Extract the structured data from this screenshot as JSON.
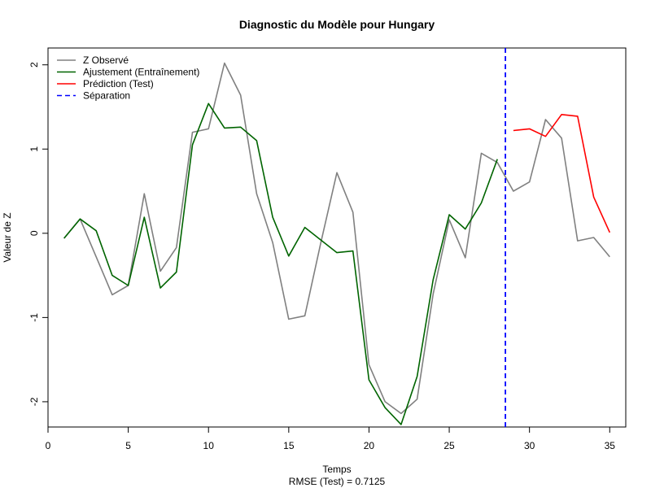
{
  "chart_data": {
    "type": "line",
    "title": "Diagnostic du Modèle pour Hungary",
    "xlabel": "Temps",
    "subtitle": "RMSE (Test) = 0.7125",
    "ylabel": "Valeur de Z",
    "xlim": [
      0,
      36
    ],
    "ylim": [
      -2.3,
      2.2
    ],
    "xticks": [
      0,
      5,
      10,
      15,
      20,
      25,
      30,
      35
    ],
    "yticks": [
      -2,
      -1,
      0,
      1,
      2
    ],
    "grid": false,
    "legend_position": "top-left",
    "split_x": 28.5,
    "series": [
      {
        "name": "Z Observé",
        "color": "#808080",
        "style": "solid",
        "x": [
          1,
          2,
          3,
          4,
          5,
          6,
          7,
          8,
          9,
          10,
          11,
          12,
          13,
          14,
          15,
          16,
          17,
          18,
          19,
          20,
          21,
          22,
          23,
          24,
          25,
          26,
          27,
          28,
          29,
          30,
          31,
          32,
          33,
          34,
          35
        ],
        "values": [
          -0.06,
          0.17,
          -0.28,
          -0.73,
          -0.62,
          0.47,
          -0.45,
          -0.17,
          1.2,
          1.24,
          2.02,
          1.64,
          0.47,
          -0.11,
          -1.02,
          -0.98,
          -0.11,
          0.72,
          0.25,
          -1.56,
          -2.0,
          -2.14,
          -1.97,
          -0.72,
          0.16,
          -0.29,
          0.95,
          0.84,
          0.5,
          0.61,
          1.35,
          1.13,
          -0.09,
          -0.05,
          -0.28
        ]
      },
      {
        "name": "Ajustement (Entraînement)",
        "color": "#006400",
        "style": "solid",
        "x": [
          1,
          2,
          3,
          4,
          5,
          6,
          7,
          8,
          9,
          10,
          11,
          12,
          13,
          14,
          15,
          16,
          17,
          18,
          19,
          20,
          21,
          22,
          23,
          24,
          25,
          26,
          27,
          28
        ],
        "values": [
          -0.06,
          0.17,
          0.03,
          -0.5,
          -0.62,
          0.19,
          -0.65,
          -0.46,
          1.05,
          1.54,
          1.25,
          1.26,
          1.1,
          0.19,
          -0.27,
          0.07,
          -0.08,
          -0.23,
          -0.21,
          -1.74,
          -2.07,
          -2.27,
          -1.7,
          -0.55,
          0.22,
          0.05,
          0.36,
          0.88
        ]
      },
      {
        "name": "Prédiction (Test)",
        "color": "#ff0000",
        "style": "solid",
        "x": [
          29,
          30,
          31,
          32,
          33,
          34,
          35
        ],
        "values": [
          1.22,
          1.24,
          1.15,
          1.41,
          1.39,
          0.43,
          0.01
        ]
      },
      {
        "name": "Séparation",
        "color": "#0000ff",
        "style": "dashed",
        "x": [],
        "values": []
      }
    ]
  }
}
